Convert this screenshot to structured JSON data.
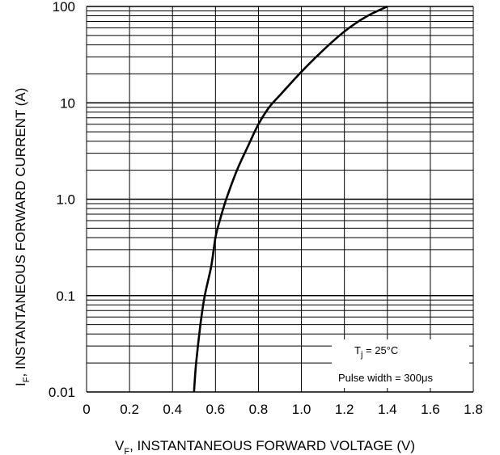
{
  "chart_data": {
    "type": "line",
    "xlabel": {
      "prefix": "V",
      "sub": "F",
      "text": ", INSTANTANEOUS FORWARD VOLTAGE (V)"
    },
    "ylabel": {
      "prefix": "I",
      "sub": "F",
      "text": ", INSTANTANEOUS FORWARD CURRENT (A)"
    },
    "xlim": [
      0,
      1.8
    ],
    "ylim": [
      0.01,
      100
    ],
    "yscale": "log",
    "grid": true,
    "x_ticks": [
      "0",
      "0.2",
      "0.4",
      "0.6",
      "0.8",
      "1.0",
      "1.2",
      "1.4",
      "1.6",
      "1.8"
    ],
    "y_ticks": [
      "0.01",
      "0.1",
      "1.0",
      "10",
      "100"
    ],
    "series": [
      {
        "x": [
          0.5,
          0.51,
          0.53,
          0.55,
          0.58,
          0.6,
          0.62,
          0.65,
          0.7,
          0.75,
          0.8,
          0.85,
          0.9,
          1.0,
          1.1,
          1.2,
          1.3,
          1.4
        ],
        "y": [
          0.01,
          0.02,
          0.05,
          0.1,
          0.2,
          0.4,
          0.6,
          1.0,
          2.0,
          3.5,
          6.0,
          9.0,
          12,
          21,
          35,
          55,
          78,
          100
        ]
      }
    ],
    "annotations": {
      "temp": {
        "prefix": "T",
        "sub": "j",
        "text": " = 25°C"
      },
      "pulse": {
        "text": "Pulse width = 300",
        "unit": "μs"
      }
    }
  }
}
